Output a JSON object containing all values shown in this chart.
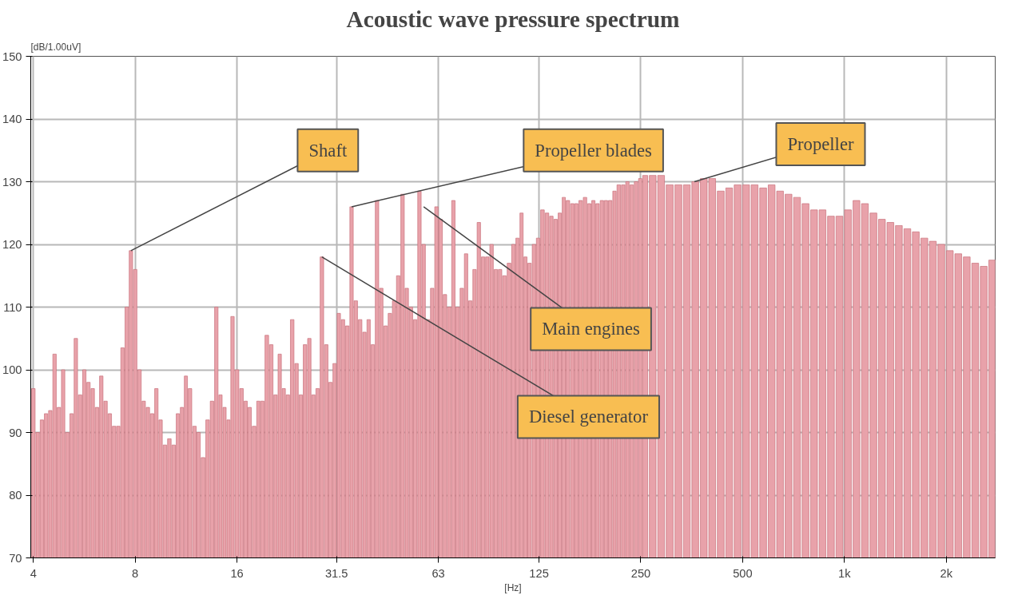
{
  "chart_data": {
    "type": "bar",
    "title": "Acoustic wave pressure spectrum",
    "xlabel": "[Hz]",
    "ylabel": "[dB/1.00uV]",
    "x": [
      4,
      4.12,
      4.24,
      4.36,
      4.49,
      4.62,
      4.76,
      4.9,
      5.04,
      5.19,
      5.34,
      5.5,
      5.66,
      5.82,
      5.99,
      6.17,
      6.35,
      6.54,
      6.73,
      6.93,
      7.13,
      7.34,
      7.55,
      7.77,
      8,
      8.24,
      8.48,
      8.72,
      8.98,
      9.24,
      9.51,
      9.79,
      10.1,
      10.4,
      10.7,
      11.0,
      11.3,
      11.6,
      12.0,
      12.3,
      12.7,
      13.1,
      13.5,
      13.9,
      14.3,
      14.7,
      15.1,
      15.5,
      16,
      16.5,
      17.0,
      17.4,
      18.0,
      18.5,
      19.0,
      19.6,
      20.2,
      20.8,
      21.4,
      22.0,
      22.6,
      23.3,
      24.0,
      24.7,
      25.4,
      26.2,
      26.9,
      27.7,
      28.5,
      29.4,
      30.2,
      31.1,
      32,
      32.9,
      33.9,
      34.9,
      35.9,
      37.0,
      38.1,
      39.2,
      40.3,
      41.5,
      42.7,
      44.0,
      45.3,
      46.6,
      47.9,
      49.4,
      50.8,
      52.3,
      53.8,
      55.4,
      57.0,
      58.7,
      60.4,
      62.2,
      64,
      65.9,
      67.8,
      69.8,
      71.8,
      73.9,
      76.1,
      78.3,
      80.6,
      83.0,
      85.4,
      87.9,
      90.5,
      93.2,
      95.9,
      98.7,
      102,
      105,
      108,
      111,
      114,
      117,
      121,
      124,
      128,
      132,
      136,
      140,
      144,
      148,
      152,
      157,
      161,
      166,
      171,
      176,
      181,
      186,
      192,
      197,
      203,
      209,
      215,
      222,
      228,
      235,
      242,
      249,
      256,
      271,
      287,
      304,
      323,
      342,
      362,
      384,
      406,
      431,
      456,
      483,
      512,
      542,
      575,
      609,
      645,
      683,
      724,
      767,
      813,
      861,
      912,
      966,
      1024,
      1085,
      1149,
      1218,
      1290,
      1367,
      1448,
      1534,
      1625,
      1722,
      1825,
      1933,
      2048,
      2170,
      2299,
      2435,
      2580,
      2734
    ],
    "series": [
      {
        "color": "#e8a2aa",
        "values": [
          97,
          90,
          92,
          93,
          93.5,
          102.5,
          94,
          100,
          90,
          93,
          105,
          96,
          100,
          98,
          97,
          94,
          99,
          95,
          93,
          91,
          91,
          103.5,
          110,
          119,
          116,
          100,
          95,
          94,
          93,
          97,
          92,
          88,
          89,
          88,
          93,
          94,
          99,
          97,
          91,
          90,
          86,
          92,
          95,
          110,
          96,
          94,
          92,
          108.5,
          100,
          97,
          95,
          94,
          91,
          95,
          95,
          105.5,
          104,
          96,
          102.5,
          97,
          96,
          108,
          101,
          96,
          104,
          105,
          96,
          97,
          118,
          104,
          98,
          101,
          109,
          108,
          107,
          126,
          111,
          108,
          106,
          108,
          104,
          127,
          113,
          107,
          109,
          111,
          115,
          128,
          113,
          110,
          108,
          128.5,
          120,
          108,
          113,
          126,
          124,
          112,
          110,
          127,
          110,
          113,
          118.5,
          111,
          116,
          123.5,
          118,
          118,
          120,
          116,
          116,
          115,
          117,
          120,
          121,
          125,
          118,
          117,
          120,
          121,
          125.5,
          125,
          124.5,
          124,
          125,
          127.5,
          127,
          126.5,
          126.5,
          127,
          127.5,
          126.5,
          127,
          126.5,
          127,
          127,
          127,
          128.5,
          129.5,
          129.5,
          130,
          129.5,
          130,
          130.5,
          131,
          131,
          131,
          129.5,
          129.5,
          129.5,
          130,
          130.5,
          130.5,
          128.5,
          129,
          129.5,
          129.5,
          129.5,
          129,
          129.5,
          128.5,
          128,
          127.5,
          126.5,
          125.5,
          125.5,
          124.5,
          124.5,
          125.5,
          127,
          126.5,
          125,
          124,
          123.5,
          123,
          122.5,
          122,
          121,
          120.5,
          120,
          119,
          118.5,
          118,
          117,
          116.5,
          117.5
        ]
      }
    ],
    "log": "x",
    "xlim": [
      3.93,
      2790
    ],
    "xticks": [
      4,
      8,
      16,
      31.5,
      63,
      125,
      250,
      500,
      {
        "value": 1000,
        "label": "1k"
      },
      {
        "value": 2000,
        "label": "2k"
      }
    ],
    "ylim": [
      70,
      150
    ],
    "yticks": [
      70,
      80,
      90,
      100,
      110,
      120,
      130,
      140,
      150
    ],
    "grid": true,
    "annotations": [
      {
        "text": "Shaft",
        "x": 7.77,
        "y": 119
      },
      {
        "text": "Propeller blades",
        "x": 34.9,
        "y": 126
      },
      {
        "text": "Propeller",
        "x": 360,
        "y": 130
      },
      {
        "text": "Main engines",
        "x": 57,
        "y": 126
      },
      {
        "text": "Diesel generator",
        "x": 28.5,
        "y": 118
      }
    ]
  }
}
